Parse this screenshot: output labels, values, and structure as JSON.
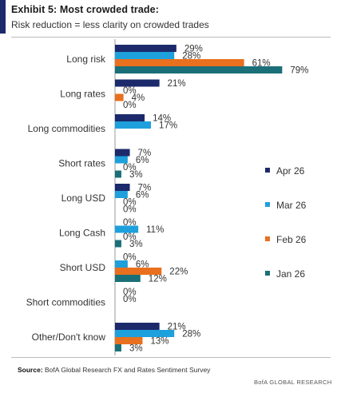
{
  "header": {
    "title": "Exhibit 5: Most crowded trade:",
    "subtitle": "Risk reduction = less clarity on crowded trades"
  },
  "chart_data": {
    "type": "bar",
    "orientation": "horizontal",
    "categories": [
      "Long risk",
      "Long rates",
      "Long commodities",
      "Short rates",
      "Long USD",
      "Long Cash",
      "Short USD",
      "Short commodities",
      "Other/Don't know"
    ],
    "series": [
      {
        "name": "Apr 26",
        "color": "#1c2a6b",
        "values": [
          29,
          21,
          14,
          7,
          7,
          0,
          0,
          0,
          21
        ]
      },
      {
        "name": "Mar 26",
        "color": "#1ea0dc",
        "values": [
          28,
          0,
          17,
          6,
          6,
          11,
          6,
          0,
          28
        ]
      },
      {
        "name": "Feb 26",
        "color": "#e8701e",
        "values": [
          61,
          4,
          null,
          0,
          0,
          0,
          22,
          null,
          13
        ]
      },
      {
        "name": "Jan 26",
        "color": "#1a6f78",
        "values": [
          79,
          0,
          null,
          3,
          0,
          3,
          12,
          null,
          3
        ]
      }
    ],
    "value_suffix": "%",
    "xlim": [
      0,
      80
    ],
    "legend_position": "right",
    "grid": false
  },
  "footer": {
    "source_label": "Source:",
    "source_text": " BofA Global Research FX and Rates Sentiment Survey",
    "brand": "BofA GLOBAL RESEARCH"
  }
}
